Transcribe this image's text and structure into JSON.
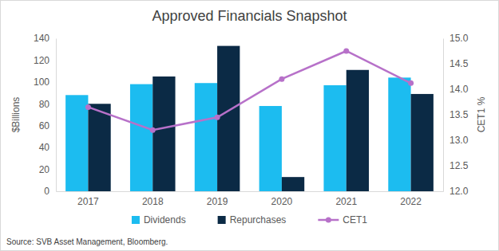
{
  "chart_data": {
    "type": "bar",
    "title": "Approved Financials Snapshot",
    "y_label": "$Billions",
    "y2_label": "CET1 %",
    "source": "Source: SVB Asset Management, Bloomberg.",
    "categories": [
      "2017",
      "2018",
      "2019",
      "2020",
      "2021",
      "2022"
    ],
    "series": [
      {
        "name": "Dividends",
        "type": "bar",
        "color": "#1cbcf0",
        "values": [
          88,
          98,
          99,
          78,
          97,
          104
        ]
      },
      {
        "name": "Repurchases",
        "type": "bar",
        "color": "#0b2a45",
        "values": [
          80,
          105,
          133,
          13,
          111,
          89
        ]
      },
      {
        "name": "CET1",
        "type": "line",
        "axis": "y2",
        "color": "#b771c9",
        "marker": "circle",
        "line_style": "solid",
        "values": [
          13.65,
          13.2,
          13.45,
          14.2,
          14.75,
          14.12
        ]
      }
    ],
    "ylim": [
      0,
      140
    ],
    "yticks": [
      0,
      20,
      40,
      60,
      80,
      100,
      120,
      140
    ],
    "y2lim": [
      12,
      15
    ],
    "y2ticks": [
      {
        "value": 12,
        "label": "12.0"
      },
      12.5,
      {
        "value": 13,
        "label": "13.0"
      },
      13.5,
      {
        "value": 14,
        "label": "14.0"
      },
      14.5,
      {
        "value": 15,
        "label": "15.0"
      }
    ],
    "grid": false,
    "legend": "bottom"
  }
}
